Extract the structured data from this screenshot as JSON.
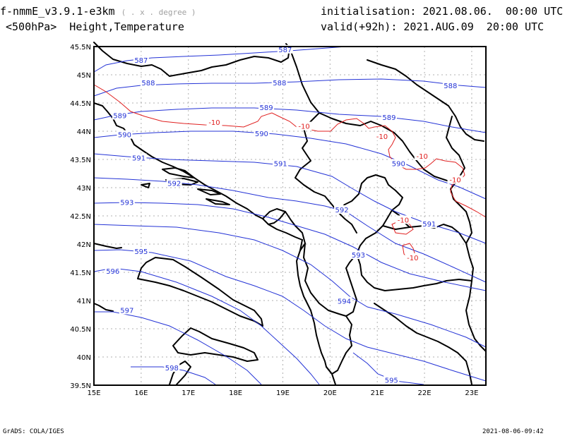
{
  "header": {
    "model": "f-nmmE_v3.9.1-e3km",
    "units_note": "( . x . degree )",
    "subtitle": "<500hPa>  Height,Temperature",
    "init": "initialisation: 2021.08.06.  00:00 UTC",
    "valid": "valid(+92h): 2021.AUG.09  20:00 UTC"
  },
  "footer": {
    "left": "GrADS: COLA/IGES",
    "right": "2021-08-06-09:42"
  },
  "map": {
    "lon_range": [
      15.0,
      23.3
    ],
    "lat_range": [
      39.5,
      45.5
    ],
    "x_ticks": [
      {
        "value": 15,
        "label": "15E"
      },
      {
        "value": 16,
        "label": "16E"
      },
      {
        "value": 17,
        "label": "17E"
      },
      {
        "value": 18,
        "label": "18E"
      },
      {
        "value": 19,
        "label": "19E"
      },
      {
        "value": 20,
        "label": "20E"
      },
      {
        "value": 21,
        "label": "21E"
      },
      {
        "value": 22,
        "label": "22E"
      },
      {
        "value": 23,
        "label": "23E"
      }
    ],
    "y_ticks": [
      {
        "value": 39.5,
        "label": "39.5N"
      },
      {
        "value": 40,
        "label": "40N"
      },
      {
        "value": 40.5,
        "label": "40.5N"
      },
      {
        "value": 41,
        "label": "41N"
      },
      {
        "value": 41.5,
        "label": "41.5N"
      },
      {
        "value": 42,
        "label": "42N"
      },
      {
        "value": 42.5,
        "label": "42.5N"
      },
      {
        "value": 43,
        "label": "43N"
      },
      {
        "value": 43.5,
        "label": "43.5N"
      },
      {
        "value": 44,
        "label": "44N"
      },
      {
        "value": 44.5,
        "label": "44.5N"
      },
      {
        "value": 45,
        "label": "45N"
      },
      {
        "value": 45.5,
        "label": "45.5N"
      }
    ],
    "grid": "dotted",
    "colors": {
      "height": "#2433d6",
      "temperature": "#e02020",
      "coast": "#000000"
    },
    "height_labels": [
      {
        "text": "587",
        "lon": 16.0,
        "lat": 45.25
      },
      {
        "text": "587",
        "lon": 19.05,
        "lat": 45.44
      },
      {
        "text": "588",
        "lon": 16.15,
        "lat": 44.85
      },
      {
        "text": "588",
        "lon": 18.93,
        "lat": 44.85
      },
      {
        "text": "588",
        "lon": 22.55,
        "lat": 44.8
      },
      {
        "text": "589",
        "lon": 15.55,
        "lat": 44.27
      },
      {
        "text": "589",
        "lon": 18.65,
        "lat": 44.41
      },
      {
        "text": "589",
        "lon": 21.25,
        "lat": 44.24
      },
      {
        "text": "590",
        "lon": 15.65,
        "lat": 43.93
      },
      {
        "text": "590",
        "lon": 18.55,
        "lat": 43.95
      },
      {
        "text": "590",
        "lon": 21.45,
        "lat": 43.42
      },
      {
        "text": "591",
        "lon": 15.95,
        "lat": 43.52
      },
      {
        "text": "591",
        "lon": 18.95,
        "lat": 43.42
      },
      {
        "text": "591",
        "lon": 22.1,
        "lat": 42.35
      },
      {
        "text": "592",
        "lon": 16.7,
        "lat": 43.07
      },
      {
        "text": "592",
        "lon": 20.25,
        "lat": 42.6
      },
      {
        "text": "593",
        "lon": 15.7,
        "lat": 42.73
      },
      {
        "text": "593",
        "lon": 20.6,
        "lat": 41.8
      },
      {
        "text": "595",
        "lon": 16.0,
        "lat": 41.86
      },
      {
        "text": "595",
        "lon": 21.3,
        "lat": 39.58
      },
      {
        "text": "594",
        "lon": 20.3,
        "lat": 40.98
      },
      {
        "text": "596",
        "lon": 15.4,
        "lat": 41.51
      },
      {
        "text": "597",
        "lon": 15.7,
        "lat": 40.82
      },
      {
        "text": "598",
        "lon": 16.65,
        "lat": 39.8
      }
    ],
    "temperature_labels": [
      {
        "text": "-10",
        "lon": 17.55,
        "lat": 44.15
      },
      {
        "text": "-10",
        "lon": 19.45,
        "lat": 44.08
      },
      {
        "text": "-10",
        "lon": 21.1,
        "lat": 43.9
      },
      {
        "text": "-10",
        "lon": 21.95,
        "lat": 43.55
      },
      {
        "text": "-10",
        "lon": 22.65,
        "lat": 43.13
      },
      {
        "text": "-10",
        "lon": 21.55,
        "lat": 42.42
      },
      {
        "text": "-10",
        "lon": 21.75,
        "lat": 41.75
      }
    ]
  }
}
